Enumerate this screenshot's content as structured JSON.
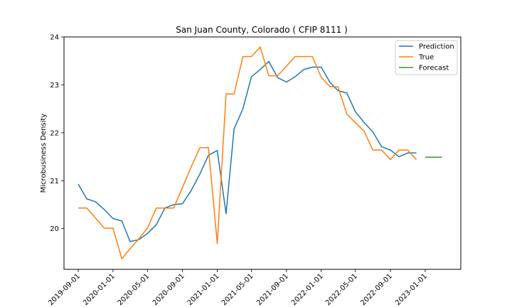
{
  "chart_data": {
    "type": "line",
    "title": "San Juan County, Colorado ( CFIP 8111 )",
    "xlabel": "",
    "ylabel": "Microbusiness Density",
    "ylim": [
      19.15,
      24.0
    ],
    "y_ticks": [
      20,
      21,
      22,
      23,
      24
    ],
    "x_range": [
      "2019-07-13",
      "2023-05-06"
    ],
    "x_ticks": [
      "2019-09-01",
      "2020-01-01",
      "2020-05-01",
      "2020-09-01",
      "2021-01-01",
      "2021-05-01",
      "2021-09-01",
      "2022-01-01",
      "2022-05-01",
      "2022-09-01",
      "2023-01-01"
    ],
    "grid": false,
    "legend": "top-right",
    "series": [
      {
        "name": "Prediction",
        "color": "#1f77b4",
        "points": [
          [
            "2019-09-01",
            20.93
          ],
          [
            "2019-10-01",
            20.62
          ],
          [
            "2019-11-01",
            20.56
          ],
          [
            "2019-12-01",
            20.4
          ],
          [
            "2020-01-01",
            20.21
          ],
          [
            "2020-02-01",
            20.16
          ],
          [
            "2020-03-01",
            19.73
          ],
          [
            "2020-04-01",
            19.77
          ],
          [
            "2020-05-01",
            19.9
          ],
          [
            "2020-06-01",
            20.08
          ],
          [
            "2020-07-01",
            20.43
          ],
          [
            "2020-08-01",
            20.5
          ],
          [
            "2020-09-01",
            20.52
          ],
          [
            "2020-10-01",
            20.79
          ],
          [
            "2020-11-01",
            21.14
          ],
          [
            "2020-12-01",
            21.53
          ],
          [
            "2021-01-01",
            21.63
          ],
          [
            "2021-02-01",
            20.31
          ],
          [
            "2021-03-01",
            22.08
          ],
          [
            "2021-04-01",
            22.5
          ],
          [
            "2021-05-01",
            23.17
          ],
          [
            "2021-06-01",
            23.32
          ],
          [
            "2021-07-01",
            23.49
          ],
          [
            "2021-08-01",
            23.15
          ],
          [
            "2021-09-01",
            23.06
          ],
          [
            "2021-10-01",
            23.17
          ],
          [
            "2021-11-01",
            23.32
          ],
          [
            "2021-12-01",
            23.37
          ],
          [
            "2022-01-01",
            23.37
          ],
          [
            "2022-02-01",
            23.05
          ],
          [
            "2022-03-01",
            22.88
          ],
          [
            "2022-04-01",
            22.83
          ],
          [
            "2022-05-01",
            22.44
          ],
          [
            "2022-06-01",
            22.21
          ],
          [
            "2022-07-01",
            22.02
          ],
          [
            "2022-08-01",
            21.71
          ],
          [
            "2022-09-01",
            21.64
          ],
          [
            "2022-10-01",
            21.5
          ],
          [
            "2022-11-01",
            21.58
          ],
          [
            "2022-12-01",
            21.58
          ]
        ]
      },
      {
        "name": "True",
        "color": "#ff7f0e",
        "points": [
          [
            "2019-09-01",
            20.43
          ],
          [
            "2019-10-01",
            20.43
          ],
          [
            "2019-11-01",
            20.22
          ],
          [
            "2019-12-01",
            20.01
          ],
          [
            "2020-01-01",
            20.01
          ],
          [
            "2020-02-01",
            19.37
          ],
          [
            "2020-03-01",
            19.58
          ],
          [
            "2020-04-01",
            19.79
          ],
          [
            "2020-05-01",
            20.01
          ],
          [
            "2020-06-01",
            20.43
          ],
          [
            "2020-07-01",
            20.43
          ],
          [
            "2020-08-01",
            20.43
          ],
          [
            "2020-09-01",
            20.86
          ],
          [
            "2020-10-01",
            21.28
          ],
          [
            "2020-11-01",
            21.69
          ],
          [
            "2020-12-01",
            21.69
          ],
          [
            "2021-01-01",
            19.69
          ],
          [
            "2021-02-01",
            22.81
          ],
          [
            "2021-03-01",
            22.81
          ],
          [
            "2021-04-01",
            23.59
          ],
          [
            "2021-05-01",
            23.59
          ],
          [
            "2021-06-01",
            23.79
          ],
          [
            "2021-07-01",
            23.19
          ],
          [
            "2021-08-01",
            23.19
          ],
          [
            "2021-09-01",
            23.39
          ],
          [
            "2021-10-01",
            23.59
          ],
          [
            "2021-11-01",
            23.59
          ],
          [
            "2021-12-01",
            23.59
          ],
          [
            "2022-01-01",
            23.16
          ],
          [
            "2022-02-01",
            22.96
          ],
          [
            "2022-03-01",
            22.96
          ],
          [
            "2022-04-01",
            22.39
          ],
          [
            "2022-05-01",
            22.21
          ],
          [
            "2022-06-01",
            22.03
          ],
          [
            "2022-07-01",
            21.64
          ],
          [
            "2022-08-01",
            21.64
          ],
          [
            "2022-09-01",
            21.44
          ],
          [
            "2022-10-01",
            21.64
          ],
          [
            "2022-11-01",
            21.64
          ],
          [
            "2022-12-01",
            21.44
          ]
        ]
      },
      {
        "name": "Forecast",
        "color": "#2ca02c",
        "points": [
          [
            "2023-01-01",
            21.49
          ],
          [
            "2023-02-01",
            21.49
          ],
          [
            "2023-03-01",
            21.49
          ]
        ]
      }
    ]
  }
}
